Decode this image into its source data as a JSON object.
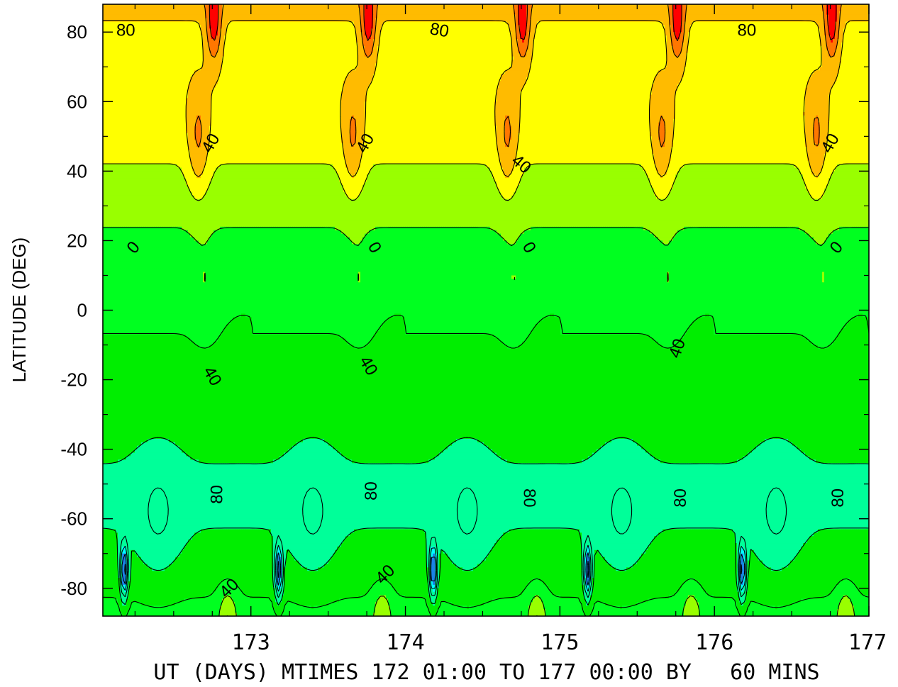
{
  "chart_data": {
    "type": "contour",
    "title": "",
    "xlabel": "UT (DAYS) MTIMES 172 01:00 TO 177 00:00 BY   60 MINS",
    "ylabel": "LATITUDE (DEG)",
    "x_range": [
      172.0417,
      177.0
    ],
    "ylim": [
      -88,
      88
    ],
    "x_ticks": [
      {
        "value": 173,
        "label": "173"
      },
      {
        "value": 174,
        "label": "174"
      },
      {
        "value": 175,
        "label": "175"
      },
      {
        "value": 176,
        "label": "176"
      },
      {
        "value": 177,
        "label": "177"
      }
    ],
    "y_ticks": [
      {
        "value": 80,
        "label": "80"
      },
      {
        "value": 60,
        "label": "60"
      },
      {
        "value": 40,
        "label": "40"
      },
      {
        "value": 20,
        "label": "20"
      },
      {
        "value": 0,
        "label": "0"
      },
      {
        "value": -20,
        "label": "-20"
      },
      {
        "value": -40,
        "label": "-40"
      },
      {
        "value": -60,
        "label": "-60"
      },
      {
        "value": -80,
        "label": "-80"
      }
    ],
    "period_days": 1,
    "contour_levels": [
      -280,
      -240,
      -200,
      -160,
      -120,
      -80,
      -40,
      0,
      40,
      80,
      120,
      160,
      200,
      240
    ],
    "negative_contours_dashed": true,
    "fill_colors": {
      "neg_200_plus": "#1a82e6",
      "neg_160_200": "#00ffff",
      "neg_80_160": "#00ff99",
      "neg_40_80": "#00ee00",
      "neg_0_40": "#00ff20",
      "zero_40": "#99ff00",
      "v40_80": "#ffff00",
      "v80_120": "#ffbb00",
      "v120_160": "#ff7700",
      "v160_200": "#ff0000",
      "v200_240": "#ff0066",
      "v240_plus": "#ff00ff"
    },
    "contour_labels": [
      {
        "text": "80",
        "x": 172.19,
        "y": 80.5,
        "angle": 0
      },
      {
        "text": "80",
        "x": 174.22,
        "y": 80.5,
        "angle": 10
      },
      {
        "text": "80",
        "x": 176.21,
        "y": 80.5,
        "angle": 0
      },
      {
        "text": "40",
        "x": 172.74,
        "y": 48,
        "angle": -60
      },
      {
        "text": "40",
        "x": 173.74,
        "y": 48,
        "angle": -60
      },
      {
        "text": "40",
        "x": 174.75,
        "y": 42,
        "angle": 40
      },
      {
        "text": "40",
        "x": 176.75,
        "y": 48,
        "angle": -60
      },
      {
        "text": "0",
        "x": 172.24,
        "y": 18,
        "angle": -50
      },
      {
        "text": "0",
        "x": 173.8,
        "y": 18,
        "angle": 60
      },
      {
        "text": "0",
        "x": 174.8,
        "y": 18,
        "angle": 60
      },
      {
        "text": "0",
        "x": 176.79,
        "y": 18,
        "angle": -50
      },
      {
        "text": "40",
        "x": 172.75,
        "y": -19,
        "angle": 60
      },
      {
        "text": "40",
        "x": 173.76,
        "y": -16,
        "angle": 60
      },
      {
        "text": "40",
        "x": 175.76,
        "y": -11,
        "angle": -70
      },
      {
        "text": "80",
        "x": 172.78,
        "y": -53,
        "angle": -90
      },
      {
        "text": "80",
        "x": 173.78,
        "y": -52,
        "angle": -90
      },
      {
        "text": "80",
        "x": 174.8,
        "y": -54,
        "angle": 90
      },
      {
        "text": "80",
        "x": 175.78,
        "y": -54,
        "angle": -90
      },
      {
        "text": "80",
        "x": 176.8,
        "y": -54,
        "angle": -90
      },
      {
        "text": "40",
        "x": 172.86,
        "y": -80,
        "angle": -45
      },
      {
        "text": "40",
        "x": 173.87,
        "y": -76,
        "angle": -45
      }
    ]
  }
}
